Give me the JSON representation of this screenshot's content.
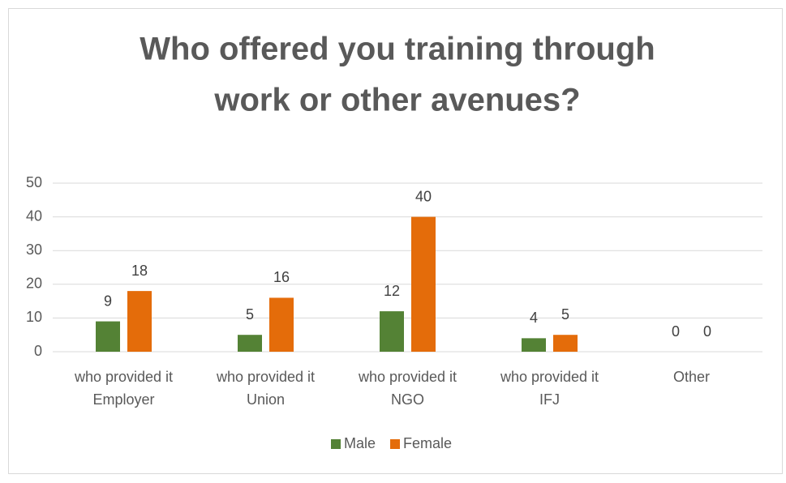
{
  "chart_data": {
    "type": "bar",
    "title": [
      "Who offered you training through",
      "work or other avenues?"
    ],
    "categories": [
      [
        "who provided it",
        "Employer"
      ],
      [
        "who provided it",
        "Union"
      ],
      [
        "who provided it",
        "NGO"
      ],
      [
        "who provided it",
        "IFJ"
      ],
      [
        "Other"
      ]
    ],
    "series": [
      {
        "name": "Male",
        "color": "#548235",
        "values": [
          9,
          5,
          12,
          4,
          0
        ]
      },
      {
        "name": "Female",
        "color": "#e46c0a",
        "values": [
          18,
          16,
          40,
          5,
          0
        ]
      }
    ],
    "ylim": [
      0,
      50
    ],
    "yticks": [
      0,
      10,
      20,
      30,
      40,
      50
    ],
    "grid": true,
    "legend": "bottom"
  }
}
